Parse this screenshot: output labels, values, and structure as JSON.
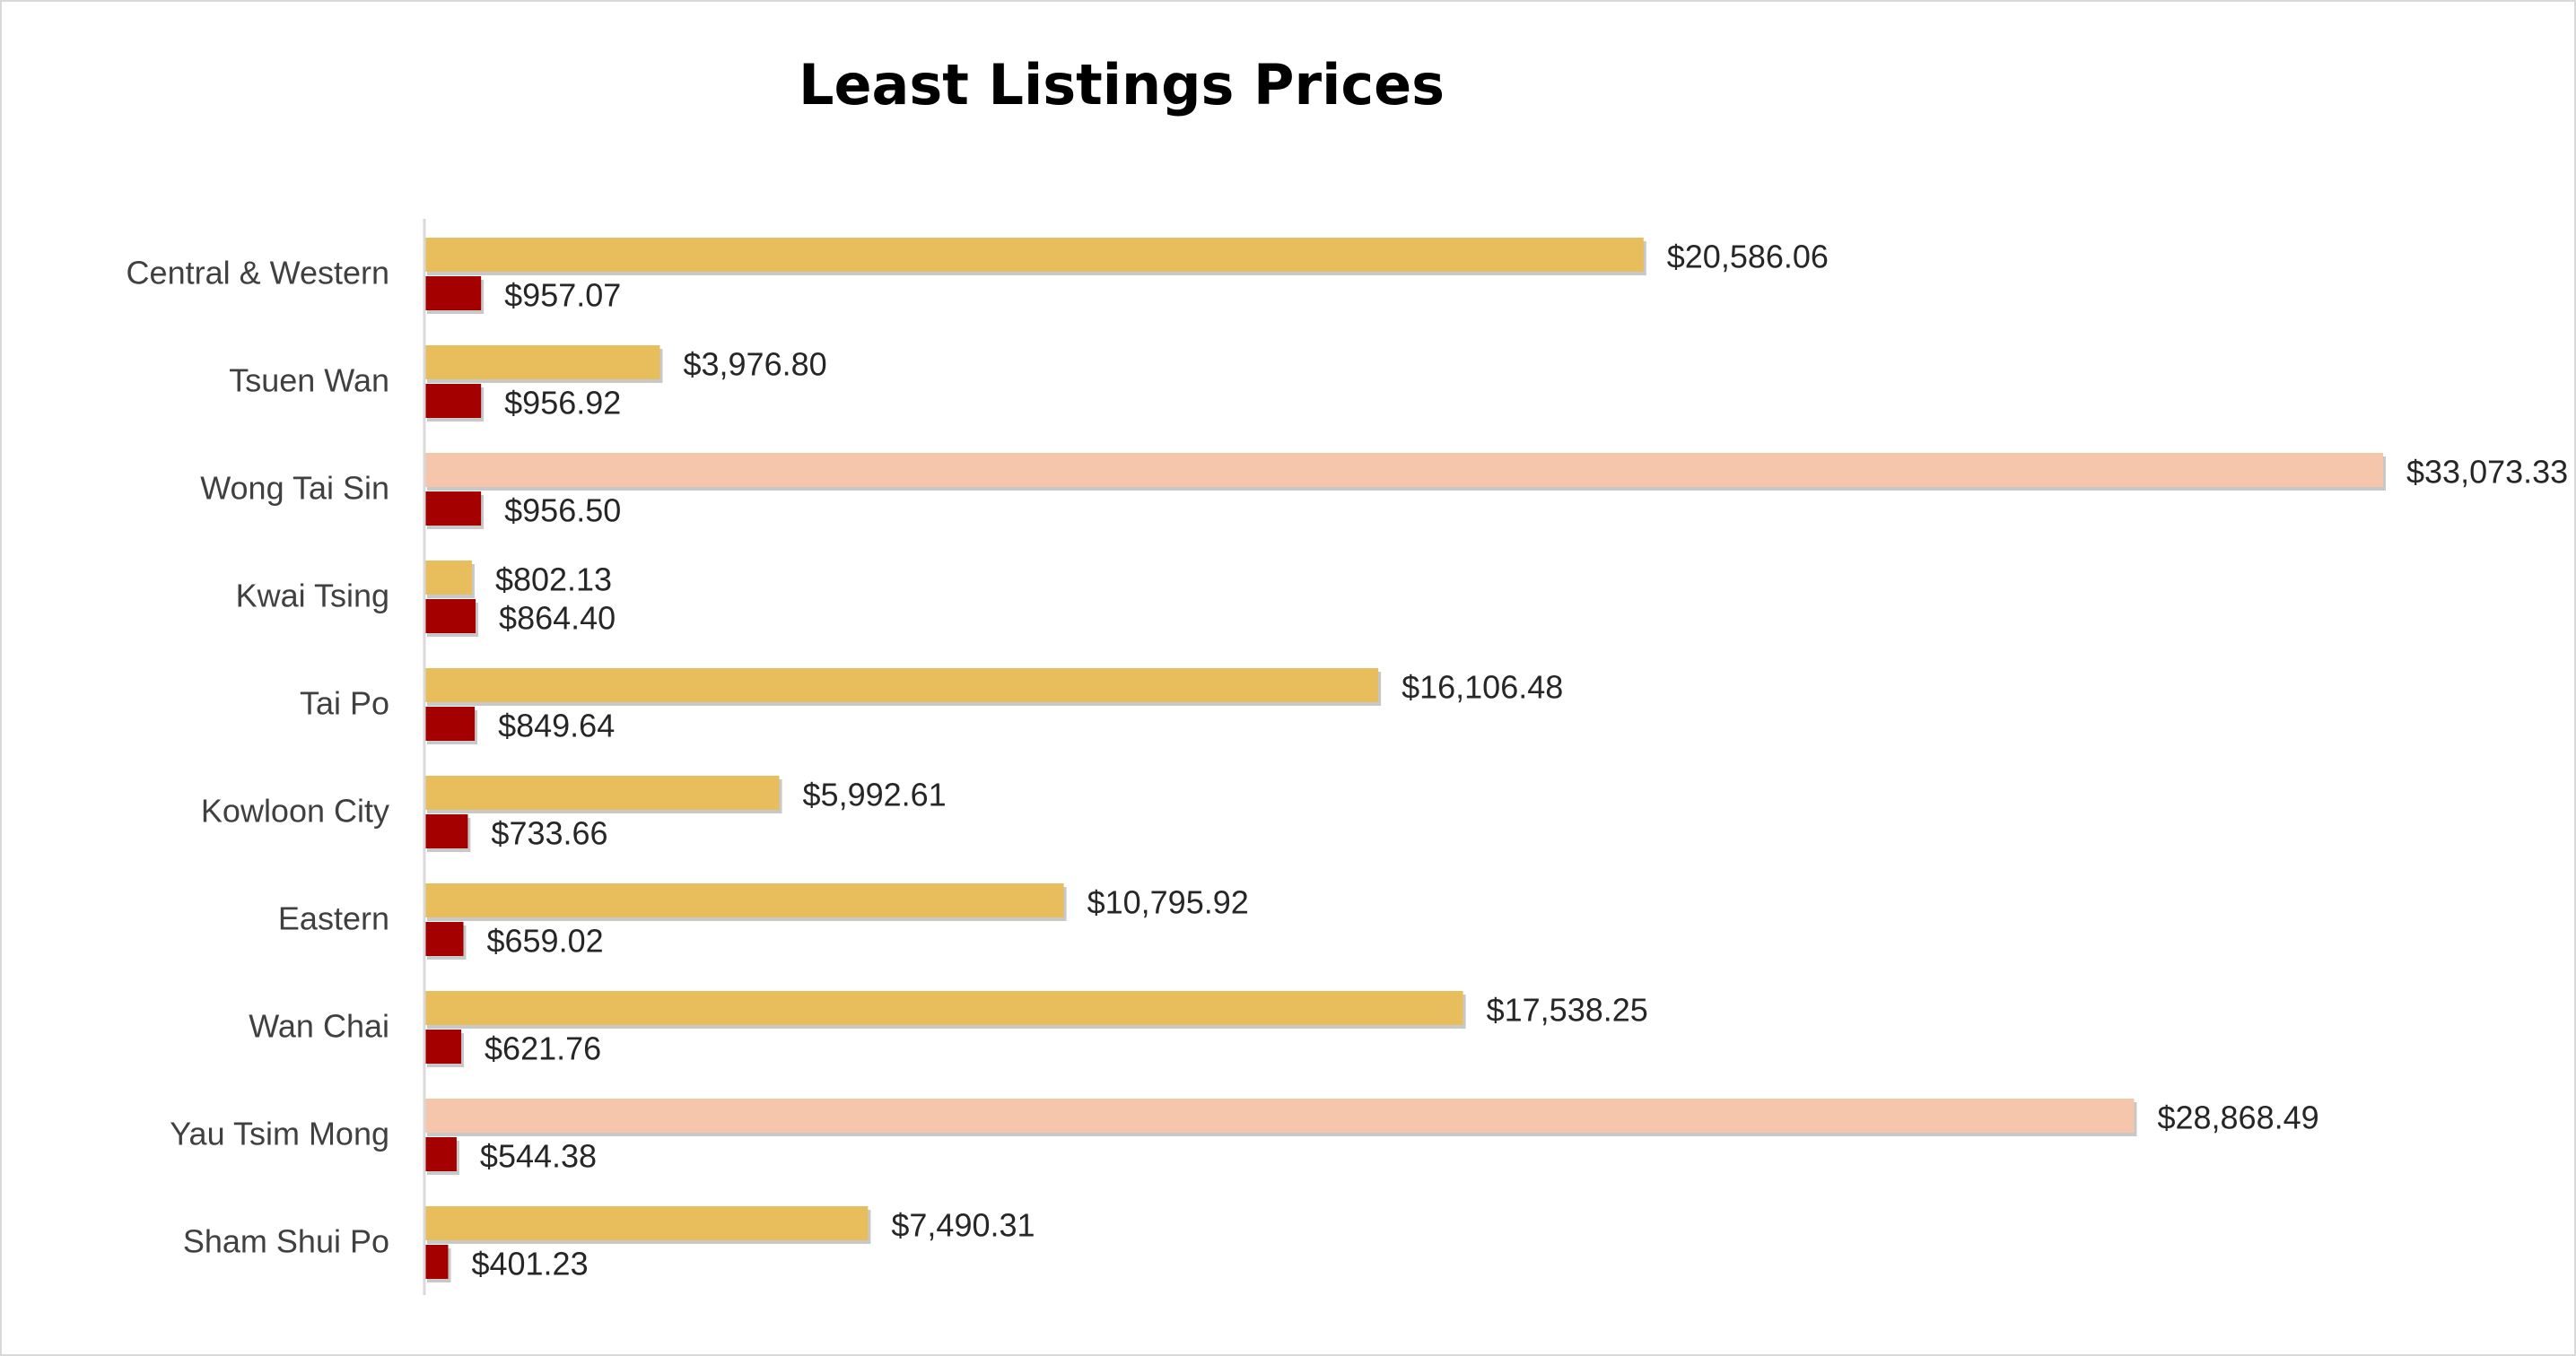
{
  "chart_data": {
    "type": "bar",
    "orientation": "horizontal",
    "title": "Least Listings Prices",
    "xlabel": "",
    "ylabel": "",
    "xlim": [
      0,
      33073.33
    ],
    "grid": false,
    "legend": "none",
    "categories": [
      "Central & Western",
      "Tsuen Wan",
      "Wong Tai Sin",
      "Kwai Tsing",
      "Tai Po",
      "Kowloon City",
      "Eastern",
      "Wan Chai",
      "Yau Tsim Mong",
      "Sham Shui Po"
    ],
    "series": [
      {
        "values": [
          20586.06,
          3976.8,
          33073.33,
          802.13,
          16106.48,
          5992.61,
          10795.92,
          17538.25,
          28868.49,
          7490.31
        ],
        "labels": [
          "$20,586.06",
          "$3,976.80",
          "$33,073.33",
          "$802.13",
          "$16,106.48",
          "$5,992.61",
          "$10,795.92",
          "$17,538.25",
          "$28,868.49",
          "$7,490.31"
        ],
        "color": "#e8bd5c",
        "point_colors": [
          "#e8bd5c",
          "#e8bd5c",
          "#f5c6ac",
          "#e8bd5c",
          "#e8bd5c",
          "#e8bd5c",
          "#e8bd5c",
          "#e8bd5c",
          "#f5c6ac",
          "#e8bd5c"
        ]
      },
      {
        "values": [
          957.07,
          956.92,
          956.5,
          864.4,
          849.64,
          733.66,
          659.02,
          621.76,
          544.38,
          401.23
        ],
        "labels": [
          "$957.07",
          "$956.92",
          "$956.50",
          "$864.40",
          "$849.64",
          "$733.66",
          "$659.02",
          "$621.76",
          "$544.38",
          "$401.23"
        ],
        "color": "#a50000"
      }
    ]
  },
  "colors": {
    "axis": "#d9d9d9",
    "frame": "#d9d9d9",
    "shadow": "#9a9a9a"
  }
}
